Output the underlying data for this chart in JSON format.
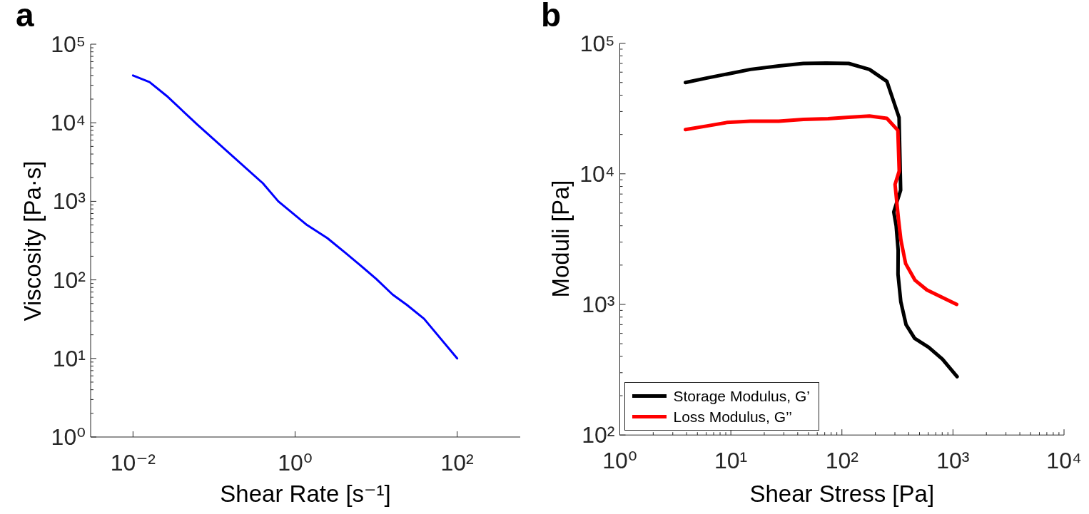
{
  "chart_data": [
    {
      "type": "line",
      "title": "a",
      "xlabel": "Shear Rate [s⁻¹]",
      "ylabel": "Viscosity [Pa·s]",
      "log": "xy",
      "xlim": [
        0.003,
        600
      ],
      "ylim": [
        1,
        100000
      ],
      "xticks": [
        {
          "value": 0.01,
          "label": "10⁻²"
        },
        {
          "value": 1,
          "label": "10⁰"
        },
        {
          "value": 100,
          "label": "10²"
        }
      ],
      "yticks": [
        {
          "value": 1,
          "label": "10⁰"
        },
        {
          "value": 2,
          "label": null
        },
        {
          "value": 3,
          "label": null
        },
        {
          "value": 4,
          "label": null
        },
        {
          "value": 5,
          "label": null
        },
        {
          "value": 6,
          "label": null
        },
        {
          "value": 7,
          "label": null
        },
        {
          "value": 8,
          "label": null
        },
        {
          "value": 9,
          "label": null
        },
        {
          "value": 10,
          "label": "10¹"
        },
        {
          "value": 20,
          "label": null
        },
        {
          "value": 30,
          "label": null
        },
        {
          "value": 40,
          "label": null
        },
        {
          "value": 50,
          "label": null
        },
        {
          "value": 60,
          "label": null
        },
        {
          "value": 70,
          "label": null
        },
        {
          "value": 80,
          "label": null
        },
        {
          "value": 90,
          "label": null
        },
        {
          "value": 100,
          "label": "10²"
        },
        {
          "value": 200,
          "label": null
        },
        {
          "value": 300,
          "label": null
        },
        {
          "value": 400,
          "label": null
        },
        {
          "value": 500,
          "label": null
        },
        {
          "value": 600,
          "label": null
        },
        {
          "value": 700,
          "label": null
        },
        {
          "value": 800,
          "label": null
        },
        {
          "value": 900,
          "label": null
        },
        {
          "value": 1000,
          "label": "10³"
        },
        {
          "value": 2000,
          "label": null
        },
        {
          "value": 3000,
          "label": null
        },
        {
          "value": 4000,
          "label": null
        },
        {
          "value": 5000,
          "label": null
        },
        {
          "value": 6000,
          "label": null
        },
        {
          "value": 7000,
          "label": null
        },
        {
          "value": 8000,
          "label": null
        },
        {
          "value": 9000,
          "label": null
        },
        {
          "value": 10000,
          "label": "10⁴"
        },
        {
          "value": 20000,
          "label": null
        },
        {
          "value": 30000,
          "label": null
        },
        {
          "value": 40000,
          "label": null
        },
        {
          "value": 50000,
          "label": null
        },
        {
          "value": 60000,
          "label": null
        },
        {
          "value": 70000,
          "label": null
        },
        {
          "value": 80000,
          "label": null
        },
        {
          "value": 90000,
          "label": null
        },
        {
          "value": 100000,
          "label": "10⁵"
        }
      ],
      "series": [
        {
          "color": "#0000ff",
          "x": [
            0.01,
            0.016,
            0.026,
            0.062,
            0.4,
            0.62,
            1.4,
            2.5,
            4.2,
            6.3,
            10,
            16,
            24,
            39,
            100
          ],
          "values": [
            40000,
            33000,
            22000,
            9500,
            1700,
            1000,
            500,
            340,
            220,
            155,
            103,
            65,
            48,
            32,
            10
          ]
        }
      ]
    },
    {
      "type": "line",
      "title": "b",
      "xlabel": "Shear Stress [Pa]",
      "ylabel": "Moduli [Pa]",
      "log": "xy",
      "legend": "bottom left",
      "xlim": [
        1,
        10000
      ],
      "ylim": [
        100,
        100000
      ],
      "xticks": [
        {
          "value": 1,
          "label": "10⁰"
        },
        {
          "value": 2,
          "label": null
        },
        {
          "value": 3,
          "label": null
        },
        {
          "value": 4,
          "label": null
        },
        {
          "value": 5,
          "label": null
        },
        {
          "value": 6,
          "label": null
        },
        {
          "value": 7,
          "label": null
        },
        {
          "value": 8,
          "label": null
        },
        {
          "value": 9,
          "label": null
        },
        {
          "value": 10,
          "label": "10¹"
        },
        {
          "value": 20,
          "label": null
        },
        {
          "value": 30,
          "label": null
        },
        {
          "value": 40,
          "label": null
        },
        {
          "value": 50,
          "label": null
        },
        {
          "value": 60,
          "label": null
        },
        {
          "value": 70,
          "label": null
        },
        {
          "value": 80,
          "label": null
        },
        {
          "value": 90,
          "label": null
        },
        {
          "value": 100,
          "label": "10²"
        },
        {
          "value": 200,
          "label": null
        },
        {
          "value": 300,
          "label": null
        },
        {
          "value": 400,
          "label": null
        },
        {
          "value": 500,
          "label": null
        },
        {
          "value": 600,
          "label": null
        },
        {
          "value": 700,
          "label": null
        },
        {
          "value": 800,
          "label": null
        },
        {
          "value": 900,
          "label": null
        },
        {
          "value": 1000,
          "label": "10³"
        },
        {
          "value": 2000,
          "label": null
        },
        {
          "value": 3000,
          "label": null
        },
        {
          "value": 4000,
          "label": null
        },
        {
          "value": 5000,
          "label": null
        },
        {
          "value": 6000,
          "label": null
        },
        {
          "value": 7000,
          "label": null
        },
        {
          "value": 8000,
          "label": null
        },
        {
          "value": 9000,
          "label": null
        },
        {
          "value": 10000,
          "label": "10⁴"
        }
      ],
      "yticks": [
        {
          "value": 100,
          "label": "10²"
        },
        {
          "value": 200,
          "label": null
        },
        {
          "value": 300,
          "label": null
        },
        {
          "value": 400,
          "label": null
        },
        {
          "value": 500,
          "label": null
        },
        {
          "value": 600,
          "label": null
        },
        {
          "value": 700,
          "label": null
        },
        {
          "value": 800,
          "label": null
        },
        {
          "value": 900,
          "label": null
        },
        {
          "value": 1000,
          "label": "10³"
        },
        {
          "value": 2000,
          "label": null
        },
        {
          "value": 3000,
          "label": null
        },
        {
          "value": 4000,
          "label": null
        },
        {
          "value": 5000,
          "label": null
        },
        {
          "value": 6000,
          "label": null
        },
        {
          "value": 7000,
          "label": null
        },
        {
          "value": 8000,
          "label": null
        },
        {
          "value": 9000,
          "label": null
        },
        {
          "value": 10000,
          "label": "10⁴"
        },
        {
          "value": 20000,
          "label": null
        },
        {
          "value": 30000,
          "label": null
        },
        {
          "value": 40000,
          "label": null
        },
        {
          "value": 50000,
          "label": null
        },
        {
          "value": 60000,
          "label": null
        },
        {
          "value": 70000,
          "label": null
        },
        {
          "value": 80000,
          "label": null
        },
        {
          "value": 90000,
          "label": null
        },
        {
          "value": 100000,
          "label": "10⁵"
        }
      ],
      "series": [
        {
          "name": "Storage Modulus, G’",
          "color": "#000000",
          "x": [
            3.9,
            6,
            9.2,
            15,
            27,
            45,
            72,
            115,
            177,
            254,
            327,
            338,
            293,
            308,
            321,
            320,
            339,
            378,
            452,
            604,
            805,
            1090
          ],
          "values": [
            50000,
            54000,
            58000,
            63000,
            67000,
            70000,
            70500,
            70000,
            63000,
            51000,
            27000,
            7500,
            5100,
            4000,
            2600,
            1700,
            1050,
            700,
            550,
            470,
            380,
            280
          ]
        },
        {
          "name": "Loss Modulus, G’’",
          "color": "#ff0000",
          "x": [
            3.9,
            6,
            9.2,
            15,
            27,
            45,
            75,
            115,
            177,
            254,
            319,
            328,
            301,
            323,
            340,
            375,
            456,
            583,
            784,
            1080
          ],
          "values": [
            21800,
            23200,
            24700,
            25300,
            25300,
            26100,
            26400,
            27100,
            27700,
            26600,
            21500,
            10500,
            8300,
            4500,
            3100,
            2050,
            1530,
            1290,
            1140,
            1000
          ]
        }
      ]
    }
  ]
}
